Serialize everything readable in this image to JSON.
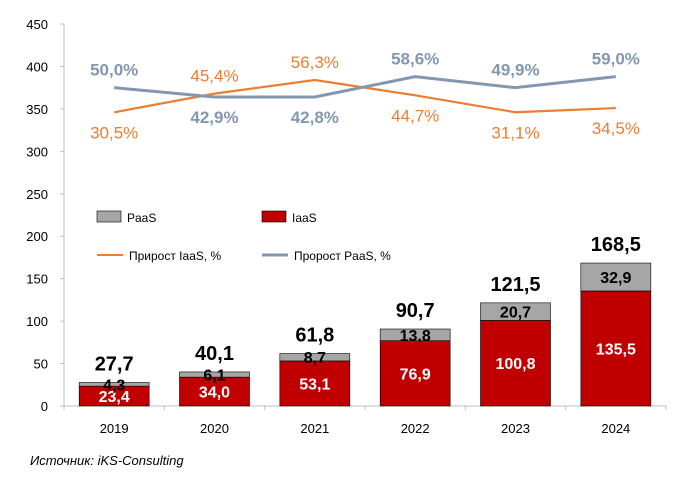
{
  "chart_data": {
    "type": "bar",
    "categories": [
      "2019",
      "2020",
      "2021",
      "2022",
      "2023",
      "2024"
    ],
    "ylim": [
      0,
      450
    ],
    "yticks": [
      "0",
      "50",
      "100",
      "150",
      "200",
      "250",
      "300",
      "350",
      "400",
      "450"
    ],
    "grid": false,
    "legend_position": "middle-left",
    "series": [
      {
        "name": "IaaS",
        "kind": "stacked-bar",
        "color": "#c00000",
        "values": [
          23.4,
          34.0,
          53.1,
          76.9,
          100.8,
          135.5
        ],
        "labels": [
          "23,4",
          "34,0",
          "53,1",
          "76,9",
          "100,8",
          "135,5"
        ]
      },
      {
        "name": "PaaS",
        "kind": "stacked-bar",
        "color": "#a6a6a6",
        "values": [
          4.3,
          6.1,
          8.7,
          13.8,
          20.7,
          32.9
        ],
        "labels": [
          "4,3",
          "6,1",
          "8,7",
          "13,8",
          "20,7",
          "32,9"
        ]
      },
      {
        "name": "Прирост IaaS, %",
        "kind": "line",
        "color": "#ed7d31",
        "plot_values": [
          346,
          368,
          384,
          366,
          346,
          351
        ],
        "labels": [
          "30,5%",
          "45,4%",
          "56,3%",
          "44,7%",
          "31,1%",
          "34,5%"
        ],
        "label_side": [
          "below",
          "above",
          "above",
          "below",
          "below",
          "below"
        ]
      },
      {
        "name": "Пророст PaaS, %",
        "kind": "line",
        "color": "#8497b0",
        "plot_values": [
          375,
          364,
          364,
          388,
          375,
          388
        ],
        "labels": [
          "50,0%",
          "42,9%",
          "42,8%",
          "58,6%",
          "49,9%",
          "59,0%"
        ],
        "label_side": [
          "above",
          "below",
          "below",
          "above",
          "above",
          "above"
        ]
      }
    ],
    "totals": [
      27.7,
      40.1,
      61.8,
      90.7,
      121.5,
      168.5
    ],
    "total_labels": [
      "27,7",
      "40,1",
      "61,8",
      "90,7",
      "121,5",
      "168,5"
    ],
    "legend": [
      "PaaS",
      "IaaS",
      "Прирост IaaS, %",
      "Пророст PaaS, %"
    ]
  },
  "source_note": "Источник: iKS-Consulting"
}
